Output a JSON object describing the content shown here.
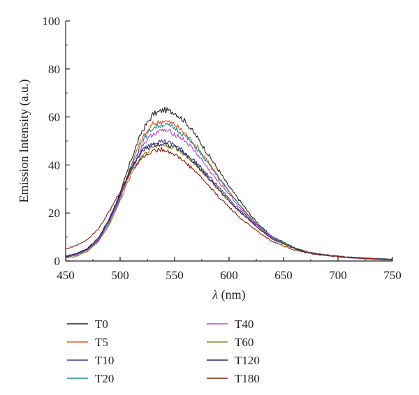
{
  "chart_data": {
    "type": "line",
    "xlabel_symbol": "λ",
    "xlabel_unit": "(nm)",
    "ylabel": "Emission Intensity (a.u.)",
    "xlim": [
      450,
      750
    ],
    "ylim": [
      0,
      100
    ],
    "xticks": [
      450,
      500,
      550,
      600,
      650,
      700,
      750
    ],
    "yticks": [
      0,
      20,
      40,
      60,
      80,
      100
    ],
    "grid": false,
    "legend_position": "bottom",
    "x": [
      450,
      460,
      470,
      480,
      490,
      500,
      510,
      520,
      530,
      540,
      550,
      560,
      570,
      580,
      590,
      600,
      610,
      620,
      630,
      640,
      650,
      660,
      670,
      680,
      690,
      700,
      710,
      720,
      730,
      740,
      750
    ],
    "series": [
      {
        "name": "T0",
        "color": "#222222",
        "values": [
          2,
          3,
          5,
          9,
          17,
          28,
          42,
          54,
          61,
          63,
          62,
          58,
          52,
          45,
          38,
          31,
          25,
          19,
          14,
          10,
          8,
          5.5,
          4,
          3,
          2.5,
          2,
          1.6,
          1.3,
          1,
          0.8,
          0.6
        ]
      },
      {
        "name": "T5",
        "color": "#e0551e",
        "values": [
          1.5,
          2.5,
          4.5,
          8.5,
          16,
          27,
          40,
          51,
          57,
          58.5,
          57,
          53,
          48,
          42,
          35,
          29,
          23,
          18,
          13,
          9.5,
          7.5,
          5.2,
          3.8,
          2.9,
          2.4,
          1.9,
          1.5,
          1.2,
          1,
          0.8,
          0.6
        ]
      },
      {
        "name": "T10",
        "color": "#3b3a99",
        "values": [
          2,
          3,
          5,
          9,
          17,
          27,
          38,
          46,
          49.5,
          50,
          48.5,
          45,
          41,
          36,
          31,
          26,
          21,
          17,
          13,
          9.5,
          7.5,
          5.5,
          4,
          3,
          2.4,
          1.9,
          1.5,
          1.2,
          1,
          0.8,
          0.6
        ]
      },
      {
        "name": "T20",
        "color": "#1f8a8a",
        "values": [
          1.5,
          2.5,
          4.5,
          8.5,
          16,
          26,
          39,
          50,
          55.5,
          57,
          55.5,
          52,
          47,
          41,
          35,
          29,
          23,
          18,
          13.5,
          10,
          7.8,
          5.4,
          4,
          3,
          2.4,
          1.9,
          1.5,
          1.2,
          1,
          0.8,
          0.6
        ]
      },
      {
        "name": "T40",
        "color": "#c53fc5",
        "values": [
          1.5,
          2.5,
          4.5,
          8.5,
          16,
          26,
          38,
          48,
          53,
          54.5,
          53,
          50,
          45,
          39,
          33,
          28,
          22,
          17.5,
          13,
          9.6,
          7.5,
          5.3,
          3.9,
          3,
          2.4,
          1.9,
          1.5,
          1.2,
          1,
          0.8,
          0.6
        ]
      },
      {
        "name": "T60",
        "color": "#8a8a1a",
        "values": [
          1.2,
          2,
          4,
          8,
          15,
          25,
          36,
          44,
          47.5,
          48.5,
          47,
          44,
          40,
          35,
          30,
          25,
          20.5,
          16.5,
          12.5,
          9.2,
          7.2,
          5.2,
          3.8,
          2.9,
          2.3,
          1.9,
          1.5,
          1.2,
          1,
          0.8,
          0.6
        ]
      },
      {
        "name": "T120",
        "color": "#2a2466",
        "values": [
          1.8,
          3,
          5.2,
          9.5,
          17.5,
          28,
          38.5,
          45.5,
          48.5,
          49,
          47.5,
          44.5,
          40,
          35,
          30,
          25,
          20.5,
          16.5,
          12.5,
          9.2,
          7.2,
          5.2,
          3.8,
          2.9,
          2.3,
          1.9,
          1.5,
          1.2,
          1,
          0.8,
          0.6
        ]
      },
      {
        "name": "T180",
        "color": "#8b1a0a",
        "values": [
          5,
          6.5,
          9,
          13.5,
          20.5,
          29,
          37.5,
          43,
          46,
          46.5,
          44.5,
          41,
          37,
          32,
          27,
          22.5,
          18,
          14.5,
          11,
          8.2,
          6.3,
          4.7,
          3.5,
          2.8,
          2.3,
          1.9,
          1.5,
          1.2,
          1,
          0.8,
          0.6
        ]
      }
    ]
  }
}
